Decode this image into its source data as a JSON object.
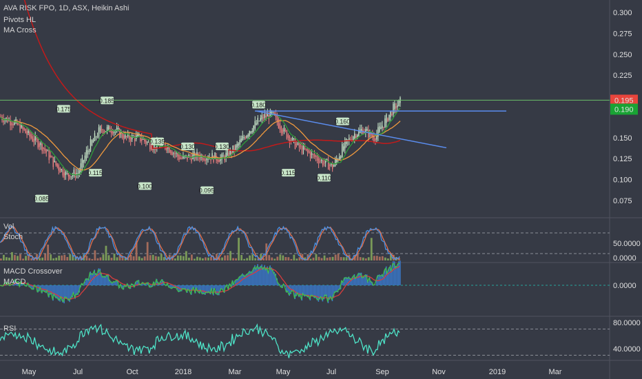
{
  "chart_data": {
    "type": "candlestick",
    "title": "AVA RISK FPO, 1D, ASX, Heikin Ashi",
    "indicators": [
      "Pivots HL",
      "MA Cross"
    ],
    "price_axis": {
      "ticks": [
        "0.300",
        "0.275",
        "0.250",
        "0.225",
        "0.195",
        "0.190",
        "0.150",
        "0.125",
        "0.100",
        "0.075"
      ],
      "ylim": [
        0.055,
        0.315
      ]
    },
    "time_axis": [
      "May",
      "Jul",
      "Oct",
      "2018",
      "Mar",
      "May",
      "Jul",
      "Sep",
      "Nov",
      "2019",
      "Mar"
    ],
    "last_price": "0.195",
    "ma_value": "0.190",
    "pivot_labels": {
      "highs": [
        "0.175",
        "0.185",
        "0.135",
        "0.130",
        "0.130",
        "0.180",
        "0.160"
      ],
      "lows": [
        "0.085",
        "0.115",
        "0.100",
        "0.095",
        "0.115",
        "0.110"
      ]
    },
    "panels": {
      "stoch": {
        "labels": [
          "Vol",
          "Stoch"
        ],
        "ticks": [
          "50.0000",
          "0.0000"
        ]
      },
      "macd": {
        "labels": [
          "MACD Crossover",
          "MACD"
        ],
        "ticks": [
          "0.0000"
        ]
      },
      "rsi": {
        "labels": [
          "RSI"
        ],
        "ticks": [
          "80.0000",
          "40.0000"
        ]
      }
    },
    "colors": {
      "background": "#363a45",
      "up_candle": "#c8e6c9",
      "down_candle": "#f08080",
      "ma_red": "#c41a1a",
      "ma_orange": "#f19a3e",
      "ma_green": "#2e9e3a",
      "trendline": "#5b8def",
      "hline": "#6abf69",
      "stoch_k": "#4a90e2",
      "stoch_d": "#e8704a",
      "rsi": "#4ee4c8"
    },
    "grid": false
  }
}
